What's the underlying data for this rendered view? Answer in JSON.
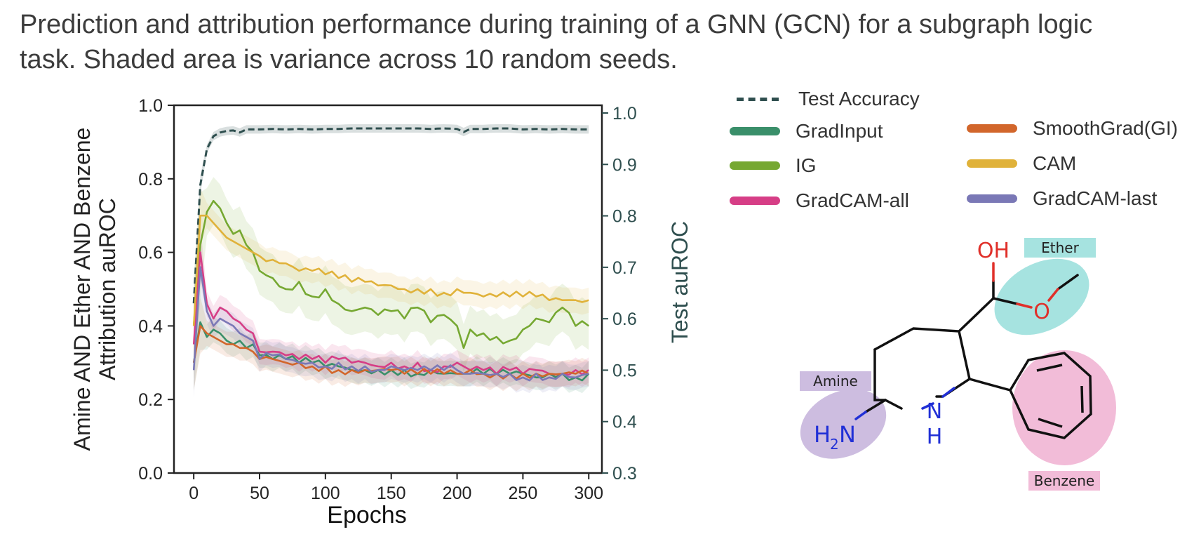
{
  "caption": {
    "line1": "Prediction and attribution performance during training of a GNN (GCN) for a subgraph logic",
    "line2": "task. Shaded area is variance across 10 random seeds."
  },
  "chart_data": {
    "type": "line",
    "xlabel": "Epochs",
    "ylabel_line1": "Amine AND Ether AND Benzene",
    "ylabel_line2": "Attribution auROC",
    "ylabel_right": "Test auROC",
    "xlim": [
      -15,
      310
    ],
    "ylim": [
      0.0,
      1.0
    ],
    "ylim_right": [
      0.3,
      1.015
    ],
    "xticks": [
      0,
      50,
      100,
      150,
      200,
      250,
      300
    ],
    "yticks": [
      "0.0",
      "0.2",
      "0.4",
      "0.6",
      "0.8",
      "1.0"
    ],
    "yticks_right": [
      "0.3",
      "0.4",
      "0.5",
      "0.6",
      "0.7",
      "0.8",
      "0.9",
      "1.0"
    ],
    "grid": false,
    "legend_position": "right",
    "x": [
      0,
      5,
      10,
      15,
      20,
      25,
      30,
      35,
      40,
      45,
      50,
      60,
      70,
      80,
      90,
      100,
      110,
      120,
      130,
      140,
      150,
      160,
      170,
      180,
      190,
      200,
      205,
      210,
      220,
      230,
      240,
      250,
      260,
      270,
      280,
      290,
      300
    ],
    "series": [
      {
        "name": "Test Accuracy",
        "axis": "right",
        "color": "#2f4f4f",
        "dashed": true,
        "values": [
          0.63,
          0.86,
          0.93,
          0.955,
          0.962,
          0.965,
          0.966,
          0.962,
          0.968,
          0.968,
          0.968,
          0.969,
          0.968,
          0.969,
          0.968,
          0.969,
          0.969,
          0.97,
          0.97,
          0.97,
          0.97,
          0.97,
          0.97,
          0.969,
          0.97,
          0.969,
          0.963,
          0.969,
          0.969,
          0.97,
          0.97,
          0.968,
          0.969,
          0.968,
          0.969,
          0.968,
          0.968
        ]
      },
      {
        "name": "GradInput",
        "axis": "left",
        "color": "#3a8f6a",
        "values": [
          0.3,
          0.41,
          0.37,
          0.39,
          0.38,
          0.36,
          0.35,
          0.36,
          0.34,
          0.35,
          0.32,
          0.31,
          0.31,
          0.3,
          0.3,
          0.29,
          0.29,
          0.28,
          0.28,
          0.28,
          0.28,
          0.28,
          0.27,
          0.28,
          0.27,
          0.27,
          0.27,
          0.27,
          0.27,
          0.27,
          0.27,
          0.27,
          0.26,
          0.27,
          0.27,
          0.26,
          0.27
        ]
      },
      {
        "name": "IG",
        "axis": "left",
        "color": "#76a832",
        "values": [
          0.4,
          0.62,
          0.71,
          0.74,
          0.72,
          0.68,
          0.65,
          0.66,
          0.62,
          0.6,
          0.55,
          0.53,
          0.5,
          0.52,
          0.48,
          0.5,
          0.46,
          0.44,
          0.45,
          0.43,
          0.44,
          0.42,
          0.45,
          0.41,
          0.43,
          0.4,
          0.34,
          0.39,
          0.38,
          0.37,
          0.36,
          0.39,
          0.42,
          0.41,
          0.45,
          0.4,
          0.4
        ]
      },
      {
        "name": "GradCAM-all",
        "axis": "left",
        "color": "#d63e86",
        "values": [
          0.35,
          0.6,
          0.46,
          0.42,
          0.45,
          0.44,
          0.42,
          0.41,
          0.39,
          0.38,
          0.33,
          0.33,
          0.32,
          0.31,
          0.31,
          0.3,
          0.31,
          0.3,
          0.3,
          0.29,
          0.3,
          0.29,
          0.3,
          0.28,
          0.29,
          0.3,
          0.29,
          0.28,
          0.28,
          0.27,
          0.28,
          0.27,
          0.28,
          0.27,
          0.27,
          0.28,
          0.28
        ]
      },
      {
        "name": "SmoothGrad(GI)",
        "axis": "left",
        "color": "#d2662b",
        "values": [
          0.3,
          0.4,
          0.38,
          0.37,
          0.36,
          0.35,
          0.35,
          0.34,
          0.34,
          0.33,
          0.31,
          0.31,
          0.3,
          0.3,
          0.29,
          0.29,
          0.28,
          0.28,
          0.28,
          0.28,
          0.28,
          0.27,
          0.27,
          0.27,
          0.27,
          0.27,
          0.27,
          0.28,
          0.27,
          0.27,
          0.27,
          0.27,
          0.27,
          0.27,
          0.27,
          0.27,
          0.27
        ]
      },
      {
        "name": "CAM",
        "axis": "left",
        "color": "#e0b23a",
        "values": [
          0.4,
          0.7,
          0.7,
          0.68,
          0.66,
          0.64,
          0.63,
          0.62,
          0.61,
          0.6,
          0.59,
          0.58,
          0.57,
          0.55,
          0.55,
          0.54,
          0.53,
          0.52,
          0.52,
          0.51,
          0.51,
          0.5,
          0.5,
          0.5,
          0.49,
          0.5,
          0.49,
          0.49,
          0.48,
          0.48,
          0.48,
          0.48,
          0.48,
          0.47,
          0.47,
          0.47,
          0.47
        ]
      },
      {
        "name": "GradCAM-last",
        "axis": "left",
        "color": "#7a78b6",
        "values": [
          0.28,
          0.56,
          0.44,
          0.4,
          0.42,
          0.41,
          0.4,
          0.38,
          0.37,
          0.36,
          0.31,
          0.32,
          0.31,
          0.3,
          0.3,
          0.29,
          0.3,
          0.29,
          0.29,
          0.28,
          0.29,
          0.28,
          0.28,
          0.28,
          0.28,
          0.28,
          0.27,
          0.27,
          0.27,
          0.27,
          0.27,
          0.26,
          0.27,
          0.26,
          0.27,
          0.26,
          0.27
        ]
      }
    ]
  },
  "molecule": {
    "labels": {
      "ether": "Ether",
      "amine": "Amine",
      "benzene": "Benzene"
    },
    "atoms": {
      "oh": "OH",
      "o": "O",
      "n": "N",
      "h": "H",
      "h2n_h": "H",
      "h2n_2": "2",
      "h2n_n": "N"
    },
    "colors": {
      "ether": "#a6e3e0",
      "amine": "#cdbde0",
      "benzene": "#f2bcd8",
      "oxygen": "#e0302a",
      "nitrogen": "#2130d6"
    }
  }
}
